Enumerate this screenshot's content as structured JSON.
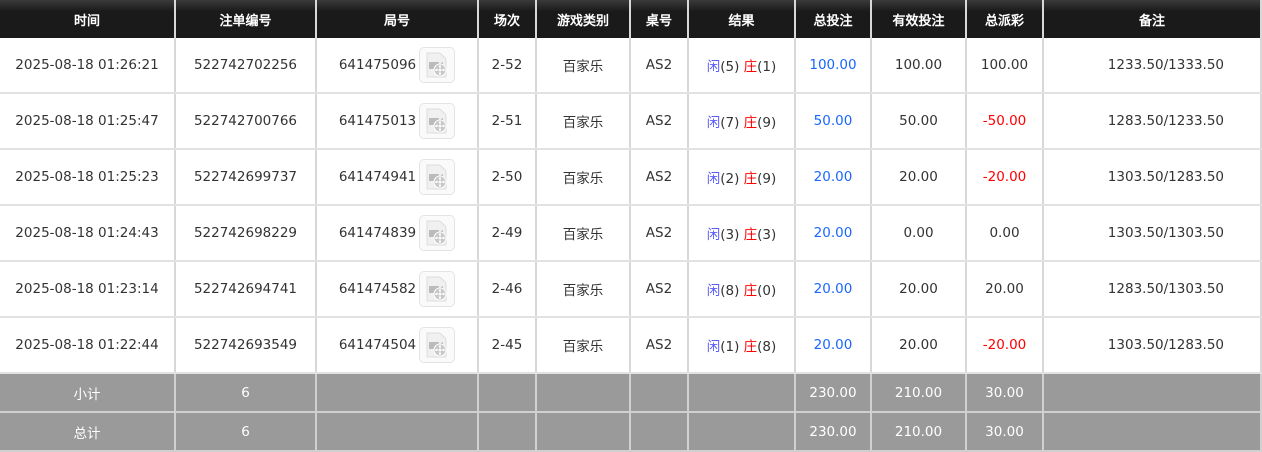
{
  "headers": [
    "时间",
    "注单编号",
    "局号",
    "场次",
    "游戏类别",
    "桌号",
    "结果",
    "总投注",
    "有效投注",
    "总派彩",
    "备注"
  ],
  "rows": [
    {
      "time": "2025-08-18 01:26:21",
      "bet_id": "522742702256",
      "round": "641475096",
      "session": "2-52",
      "game": "百家乐",
      "table": "AS2",
      "player": "闲",
      "player_pts": "(5)",
      "banker": "庄",
      "banker_pts": "(1)",
      "total_bet": "100.00",
      "valid_bet": "100.00",
      "payout": "100.00",
      "payout_negative": false,
      "note": "1233.50/1333.50"
    },
    {
      "time": "2025-08-18 01:25:47",
      "bet_id": "522742700766",
      "round": "641475013",
      "session": "2-51",
      "game": "百家乐",
      "table": "AS2",
      "player": "闲",
      "player_pts": "(7)",
      "banker": "庄",
      "banker_pts": "(9)",
      "total_bet": "50.00",
      "valid_bet": "50.00",
      "payout": "-50.00",
      "payout_negative": true,
      "note": "1283.50/1233.50"
    },
    {
      "time": "2025-08-18 01:25:23",
      "bet_id": "522742699737",
      "round": "641474941",
      "session": "2-50",
      "game": "百家乐",
      "table": "AS2",
      "player": "闲",
      "player_pts": "(2)",
      "banker": "庄",
      "banker_pts": "(9)",
      "total_bet": "20.00",
      "valid_bet": "20.00",
      "payout": "-20.00",
      "payout_negative": true,
      "note": "1303.50/1283.50"
    },
    {
      "time": "2025-08-18 01:24:43",
      "bet_id": "522742698229",
      "round": "641474839",
      "session": "2-49",
      "game": "百家乐",
      "table": "AS2",
      "player": "闲",
      "player_pts": "(3)",
      "banker": "庄",
      "banker_pts": "(3)",
      "total_bet": "20.00",
      "valid_bet": "0.00",
      "payout": "0.00",
      "payout_negative": false,
      "note": "1303.50/1303.50"
    },
    {
      "time": "2025-08-18 01:23:14",
      "bet_id": "522742694741",
      "round": "641474582",
      "session": "2-46",
      "game": "百家乐",
      "table": "AS2",
      "player": "闲",
      "player_pts": "(8)",
      "banker": "庄",
      "banker_pts": "(0)",
      "total_bet": "20.00",
      "valid_bet": "20.00",
      "payout": "20.00",
      "payout_negative": false,
      "note": "1283.50/1303.50"
    },
    {
      "time": "2025-08-18 01:22:44",
      "bet_id": "522742693549",
      "round": "641474504",
      "session": "2-45",
      "game": "百家乐",
      "table": "AS2",
      "player": "闲",
      "player_pts": "(1)",
      "banker": "庄",
      "banker_pts": "(8)",
      "total_bet": "20.00",
      "valid_bet": "20.00",
      "payout": "-20.00",
      "payout_negative": true,
      "note": "1303.50/1283.50"
    }
  ],
  "subtotal": {
    "label": "小计",
    "count": "6",
    "total_bet": "230.00",
    "valid_bet": "210.00",
    "payout": "30.00"
  },
  "total": {
    "label": "总计",
    "count": "6",
    "total_bet": "230.00",
    "valid_bet": "210.00",
    "payout": "30.00"
  },
  "colors": {
    "bet_amount": "#1a66ff",
    "negative": "#ff0000",
    "player": "#5b5bff",
    "banker": "#ff0000"
  },
  "icons": {
    "replay": "video-replay-icon"
  }
}
